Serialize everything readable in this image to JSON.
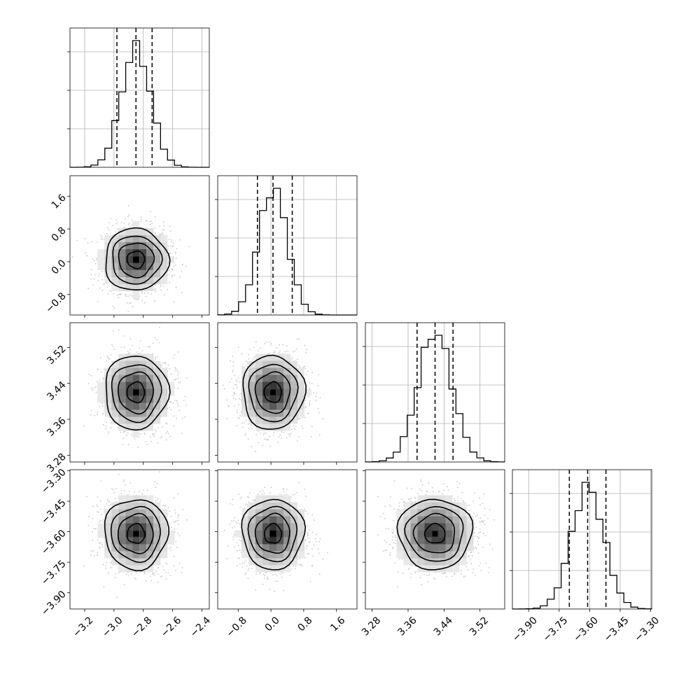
{
  "chart_data": {
    "type": "corner",
    "parameters": [
      {
        "mean": -2.85,
        "std": 0.1,
        "range": [
          -3.3,
          -2.35
        ],
        "ticks": [
          -3.2,
          -3.0,
          -2.8,
          -2.6,
          -2.4
        ],
        "tick_labels": [
          "−3.2",
          "−3.0",
          "−2.8",
          "−2.6",
          "−2.4"
        ],
        "quantiles": [
          -2.98,
          -2.85,
          -2.74
        ]
      },
      {
        "mean": 0.05,
        "std": 0.35,
        "range": [
          -1.3,
          2.1
        ],
        "ticks": [
          -0.8,
          0.0,
          0.8,
          1.6
        ],
        "tick_labels": [
          "−0.8",
          "0.0",
          "0.8",
          "1.6"
        ],
        "quantiles": [
          -0.33,
          0.05,
          0.52
        ]
      },
      {
        "mean": 3.42,
        "std": 0.038,
        "range": [
          3.265,
          3.575
        ],
        "ticks": [
          3.28,
          3.36,
          3.44,
          3.52
        ],
        "tick_labels": [
          "3.28",
          "3.36",
          "3.44",
          "3.52"
        ],
        "quantiles": [
          3.38,
          3.42,
          3.46
        ]
      },
      {
        "mean": -3.61,
        "std": 0.08,
        "range": [
          -3.98,
          -3.295
        ],
        "ticks": [
          -3.9,
          -3.75,
          -3.6,
          -3.45,
          -3.3
        ],
        "tick_labels": [
          "−3.90",
          "−3.75",
          "−3.60",
          "−3.45",
          "−3.30"
        ],
        "quantiles": [
          -3.7,
          -3.61,
          -3.52
        ]
      }
    ],
    "histogram_bins": 20,
    "grid": true,
    "contour_levels": [
      0.12,
      0.28,
      0.52,
      0.85
    ]
  }
}
